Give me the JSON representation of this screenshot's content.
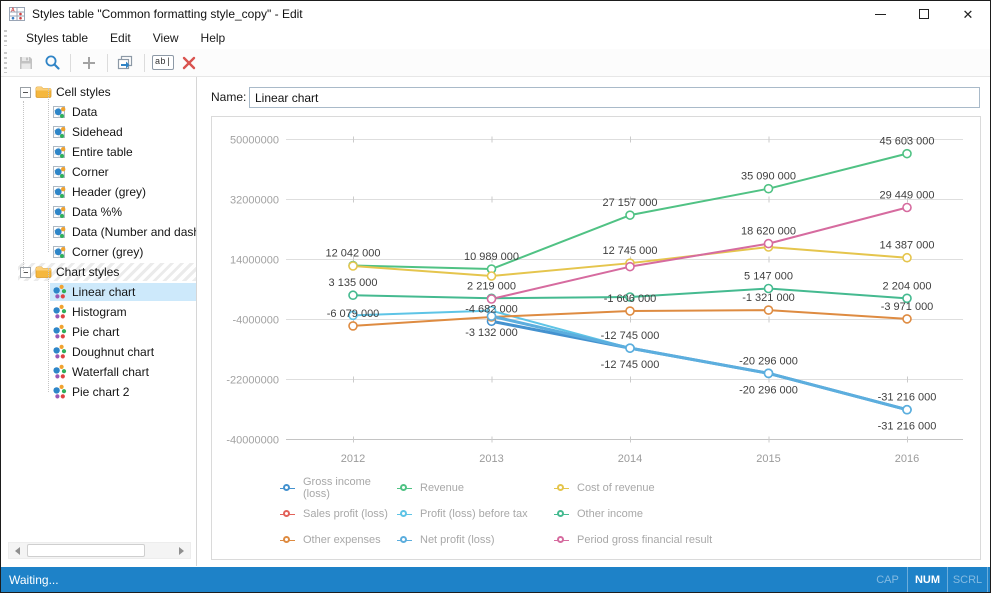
{
  "window": {
    "title": "Styles table \"Common formatting style_copy\" - Edit"
  },
  "menu": {
    "items": [
      "Styles table",
      "Edit",
      "View",
      "Help"
    ]
  },
  "toolbar": {
    "buttons": [
      "save",
      "preview",
      "add",
      "copy",
      "rename",
      "delete"
    ],
    "rename_glyph": "ab|"
  },
  "tree": {
    "groups": [
      {
        "label": "Cell styles",
        "icon": "folder",
        "expanded": true,
        "hatched": false,
        "items": [
          "Data",
          "Sidehead",
          "Entire table",
          "Corner",
          "Header (grey)",
          "Data %%",
          "Data (Number and dash",
          "Corner (grey)"
        ],
        "selected_index": -1
      },
      {
        "label": "Chart styles",
        "icon": "folder",
        "expanded": true,
        "hatched": true,
        "items": [
          "Linear chart",
          "Histogram",
          "Pie chart",
          "Doughnut chart",
          "Waterfall chart",
          "Pie chart 2"
        ],
        "selected_index": 0
      }
    ]
  },
  "name_field": {
    "label": "Name:",
    "value": "Linear chart"
  },
  "chart_data": {
    "type": "line",
    "x_categories": [
      "2012",
      "2013",
      "2014",
      "2015",
      "2016"
    ],
    "y_ticks": [
      50000000,
      32000000,
      14000000,
      -4000000,
      -22000000,
      -40000000
    ],
    "y_tick_labels": [
      "50000000",
      "32000000",
      "14000000",
      "-4000000",
      "-22000000",
      "-40000000"
    ],
    "ylim": [
      -40000000,
      50000000
    ],
    "grid": true,
    "legend_position": "bottom",
    "label_color": "#3f3f3f",
    "axis_text_color": "#a2a2a2",
    "grid_color": "#dedede",
    "series": [
      {
        "name": "Gross income (loss)",
        "color": "#4492cf",
        "line_width": 3,
        "values": [
          null,
          -4682000,
          -12745000,
          -20296000,
          -31216000
        ],
        "point_labels": [
          null,
          "-4 682 000",
          "-12 745 000",
          "-20 296 000",
          "-31 216 000"
        ],
        "label_side": "above"
      },
      {
        "name": "Revenue",
        "color": "#50c284",
        "line_width": 2,
        "values": [
          12042000,
          10989000,
          27157000,
          35090000,
          45603000
        ],
        "point_labels": [
          "12 042 000",
          "10 989 000",
          "27 157 000",
          "35 090 000",
          "45 603 000"
        ],
        "label_side": "above"
      },
      {
        "name": "Cost of revenue",
        "color": "#e5c54d",
        "line_width": 2,
        "values": [
          11900000,
          8900000,
          12745000,
          17600000,
          14387000
        ],
        "point_labels": [
          null,
          null,
          "12 745 000",
          null,
          "14 387 000"
        ],
        "label_side": "above"
      },
      {
        "name": "Sales profit (loss)",
        "color": "#e2625a",
        "line_width": 2,
        "values": [
          null,
          null,
          null,
          null,
          null
        ],
        "point_labels": [
          null,
          null,
          null,
          null,
          null
        ],
        "label_side": "above"
      },
      {
        "name": "Profit (loss) before tax",
        "color": "#5ec4e6",
        "line_width": 2,
        "values": [
          -2900000,
          -1500000,
          -12745000,
          -20296000,
          -31216000
        ],
        "point_labels": [
          null,
          null,
          null,
          null,
          null
        ],
        "label_side": "above"
      },
      {
        "name": "Other income",
        "color": "#45ba90",
        "line_width": 2,
        "values": [
          3135000,
          2219000,
          2600000,
          5147000,
          2204000
        ],
        "point_labels": [
          "3 135 000",
          "2 219 000",
          null,
          "5 147 000",
          "2 204 000"
        ],
        "label_side": "above"
      },
      {
        "name": "Other expenses",
        "color": "#de8b41",
        "line_width": 2,
        "values": [
          -6079000,
          -3400000,
          -1606000,
          -1321000,
          -3971000
        ],
        "point_labels": [
          "-6 079 000",
          null,
          "-1 606 000",
          "-1 321 000",
          "-3 971 000"
        ],
        "label_side": "above"
      },
      {
        "name": "Net profit (loss)",
        "color": "#5caede",
        "line_width": 3,
        "values": [
          null,
          -3132000,
          -12745000,
          -20296000,
          -31216000
        ],
        "point_labels": [
          null,
          "-3 132 000",
          "-12 745 000",
          "-20 296 000",
          "-31 216 000"
        ],
        "label_side": "below"
      },
      {
        "name": "Period gross financial result",
        "color": "#d66b9f",
        "line_width": 2,
        "values": [
          null,
          2000000,
          11700000,
          18620000,
          29449000
        ],
        "point_labels": [
          null,
          null,
          null,
          "18 620 000",
          "29 449 000"
        ],
        "label_side": "above"
      }
    ]
  },
  "status_bar": {
    "text": "Waiting...",
    "keys": [
      {
        "label": "CAP",
        "active": false
      },
      {
        "label": "NUM",
        "active": true
      },
      {
        "label": "SCRL",
        "active": false
      }
    ]
  }
}
